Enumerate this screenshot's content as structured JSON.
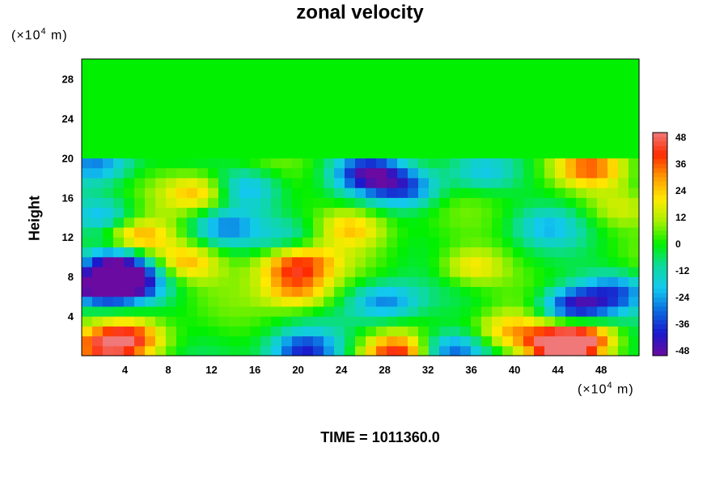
{
  "chart_data": {
    "type": "heatmap",
    "title": "zonal velocity",
    "ylabel": "Height",
    "xlabel": "",
    "x_unit_prefix": "(×10",
    "x_unit_exp": "4",
    "x_unit_suffix": " m)",
    "y_unit_prefix": "(×10",
    "y_unit_exp": "4",
    "y_unit_suffix": " m)",
    "footer": "TIME = 1011360.0",
    "xlim": [
      0,
      51.5
    ],
    "ylim": [
      0,
      30
    ],
    "x_ticks": [
      "4",
      "8",
      "12",
      "16",
      "20",
      "24",
      "28",
      "32",
      "36",
      "40",
      "44",
      "48"
    ],
    "y_ticks": [
      "4",
      "8",
      "12",
      "16",
      "20",
      "24",
      "28"
    ],
    "colorbar": {
      "min": -50,
      "max": 50,
      "ticks": [
        "48",
        "36",
        "24",
        "12",
        "0",
        "-12",
        "-24",
        "-36",
        "-48"
      ],
      "colormap": [
        "#6a0aa0",
        "#1a1acc",
        "#0b6be0",
        "#12c8f0",
        "#0ed9a0",
        "#00f000",
        "#a6f000",
        "#ffea00",
        "#ff9a00",
        "#ff2a00",
        "#f07878"
      ]
    },
    "background_value": 0,
    "features": [
      {
        "x": 26.5,
        "y": 18.5,
        "value": -40
      },
      {
        "x": 30,
        "y": 17,
        "value": -30
      },
      {
        "x": 4.5,
        "y": 7.5,
        "value": -42
      },
      {
        "x": 1.5,
        "y": 7,
        "value": -48
      },
      {
        "x": 3,
        "y": 9.5,
        "value": -32
      },
      {
        "x": 45.5,
        "y": 5,
        "value": -45
      },
      {
        "x": 49.5,
        "y": 6.5,
        "value": -30
      },
      {
        "x": 28,
        "y": 5.5,
        "value": -28
      },
      {
        "x": 20.5,
        "y": 0.5,
        "value": -38
      },
      {
        "x": 34,
        "y": 0.5,
        "value": -35
      },
      {
        "x": 15,
        "y": 17,
        "value": -24
      },
      {
        "x": 2,
        "y": 14,
        "value": -22
      },
      {
        "x": 1.5,
        "y": 19.5,
        "value": -25
      },
      {
        "x": 13,
        "y": 13,
        "value": -24
      },
      {
        "x": 37,
        "y": 18.5,
        "value": -18
      },
      {
        "x": 43,
        "y": 13,
        "value": -16
      },
      {
        "x": 19.5,
        "y": 12,
        "value": -12
      },
      {
        "x": 4.5,
        "y": 1.8,
        "value": 36
      },
      {
        "x": 1.5,
        "y": 0.8,
        "value": 28
      },
      {
        "x": 44,
        "y": 1,
        "value": 48
      },
      {
        "x": 46.5,
        "y": 1.8,
        "value": 38
      },
      {
        "x": 29,
        "y": 0.3,
        "value": 40
      },
      {
        "x": 20,
        "y": 6.5,
        "value": 28
      },
      {
        "x": 19,
        "y": 9,
        "value": 24
      },
      {
        "x": 21,
        "y": 9.5,
        "value": 20
      },
      {
        "x": 5,
        "y": 12,
        "value": 32
      },
      {
        "x": 11,
        "y": 16.5,
        "value": 26
      },
      {
        "x": 47,
        "y": 19,
        "value": 30
      },
      {
        "x": 25,
        "y": 13,
        "value": 22
      },
      {
        "x": 36,
        "y": 9,
        "value": 22
      },
      {
        "x": 39.5,
        "y": 2.5,
        "value": 24
      },
      {
        "x": 9.5,
        "y": 9.5,
        "value": 26
      },
      {
        "x": 50,
        "y": 15,
        "value": 14
      }
    ]
  },
  "colors": {
    "background": "#ffffff",
    "upper_field": "#00f000"
  }
}
